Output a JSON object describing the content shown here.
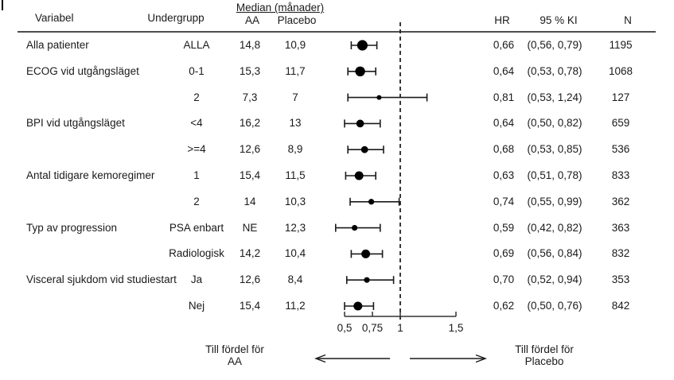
{
  "header": {
    "variabel": "Variabel",
    "undergrupp": "Undergrupp",
    "median_title": "Median (månader)",
    "aa": "AA",
    "placebo": "Placebo",
    "hr": "HR",
    "ki": "95 % KI",
    "n": "N"
  },
  "footer": {
    "left_label_line1": "Till fördel för",
    "left_label_line2": "AA",
    "right_label_line1": "Till fördel för",
    "right_label_line2": "Placebo"
  },
  "colors": {
    "text": "#1a1a1a",
    "marker": "#000000",
    "ci_line": "#1a1a1a",
    "reference_line": "#222222",
    "axis_line": "#333333",
    "header_rule": "#4d4d4d"
  },
  "chart_data": {
    "type": "scatter",
    "subtype": "forest-plot",
    "title": "",
    "xlabel": "",
    "ylabel": "",
    "x_axis": {
      "scale": "linear",
      "range": [
        0.5,
        1.5
      ],
      "reference_line": 1,
      "ticks": [
        {
          "value": 0.5,
          "label": "0,5"
        },
        {
          "value": 0.75,
          "label": "0,75"
        },
        {
          "value": 1,
          "label": "1"
        },
        {
          "value": 1.5,
          "label": "1,5"
        }
      ]
    },
    "legend": null,
    "rows": [
      {
        "variable": "Alla patienter",
        "subgroup": "ALLA",
        "median_aa": "14,8",
        "median_placebo": "10,9",
        "hr_label": "0,66",
        "hr": 0.66,
        "ci_label": "(0,56, 0,79)",
        "ci_low": 0.56,
        "ci_high": 0.79,
        "n": 1195
      },
      {
        "variable": "ECOG vid utgångsläget",
        "subgroup": "0-1",
        "median_aa": "15,3",
        "median_placebo": "11,7",
        "hr_label": "0,64",
        "hr": 0.64,
        "ci_label": "(0,53, 0,78)",
        "ci_low": 0.53,
        "ci_high": 0.78,
        "n": 1068
      },
      {
        "variable": "",
        "subgroup": "2",
        "median_aa": "7,3",
        "median_placebo": "7",
        "hr_label": "0,81",
        "hr": 0.81,
        "ci_label": "(0,53, 1,24)",
        "ci_low": 0.53,
        "ci_high": 1.24,
        "n": 127
      },
      {
        "variable": "BPI vid utgångsläget",
        "subgroup": "<4",
        "median_aa": "16,2",
        "median_placebo": "13",
        "hr_label": "0,64",
        "hr": 0.64,
        "ci_label": "(0,50, 0,82)",
        "ci_low": 0.5,
        "ci_high": 0.82,
        "n": 659
      },
      {
        "variable": "",
        "subgroup": ">=4",
        "median_aa": "12,6",
        "median_placebo": "8,9",
        "hr_label": "0,68",
        "hr": 0.68,
        "ci_label": "(0,53, 0,85)",
        "ci_low": 0.53,
        "ci_high": 0.85,
        "n": 536
      },
      {
        "variable": "Antal tidigare kemoregimer",
        "subgroup": "1",
        "median_aa": "15,4",
        "median_placebo": "11,5",
        "hr_label": "0,63",
        "hr": 0.63,
        "ci_label": "(0,51, 0,78)",
        "ci_low": 0.51,
        "ci_high": 0.78,
        "n": 833
      },
      {
        "variable": "",
        "subgroup": "2",
        "median_aa": "14",
        "median_placebo": "10,3",
        "hr_label": "0,74",
        "hr": 0.74,
        "ci_label": "(0,55, 0,99)",
        "ci_low": 0.55,
        "ci_high": 0.99,
        "n": 362
      },
      {
        "variable": "Typ av progression",
        "subgroup": "PSA enbart",
        "median_aa": "NE",
        "median_placebo": "12,3",
        "hr_label": "0,59",
        "hr": 0.59,
        "ci_label": "(0,42, 0,82)",
        "ci_low": 0.42,
        "ci_high": 0.82,
        "n": 363
      },
      {
        "variable": "",
        "subgroup": "Radiologisk",
        "median_aa": "14,2",
        "median_placebo": "10,4",
        "hr_label": "0,69",
        "hr": 0.69,
        "ci_label": "(0,56, 0,84)",
        "ci_low": 0.56,
        "ci_high": 0.84,
        "n": 832
      },
      {
        "variable": "Visceral sjukdom vid studiestart",
        "subgroup": "Ja",
        "median_aa": "12,6",
        "median_placebo": "8,4",
        "hr_label": "0,70",
        "hr": 0.7,
        "ci_label": "(0,52, 0,94)",
        "ci_low": 0.52,
        "ci_high": 0.94,
        "n": 353
      },
      {
        "variable": "",
        "subgroup": "Nej",
        "median_aa": "15,4",
        "median_placebo": "11,2",
        "hr_label": "0,62",
        "hr": 0.62,
        "ci_label": "(0,50, 0,76)",
        "ci_low": 0.5,
        "ci_high": 0.76,
        "n": 842
      }
    ]
  }
}
